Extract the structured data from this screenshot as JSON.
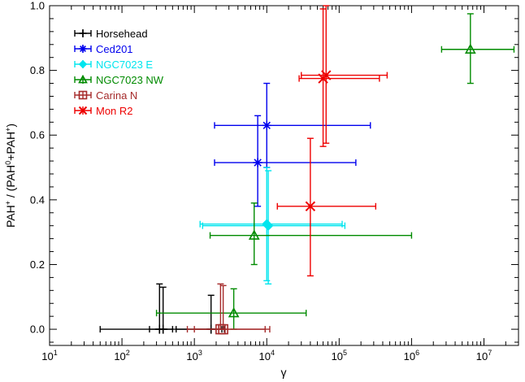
{
  "chart_data": {
    "type": "scatter",
    "xscale": "log",
    "xlim": [
      10,
      30000000
    ],
    "ylim": [
      -0.05,
      1.0
    ],
    "xlabel": "γ",
    "ylabel": "PAH⁺ / (PAH⁰+PAH⁺)",
    "xticks": [
      10,
      100,
      1000,
      10000,
      100000,
      1000000,
      10000000
    ],
    "xtick_labels": [
      {
        "base": "10",
        "exp": "1"
      },
      {
        "base": "10",
        "exp": "2"
      },
      {
        "base": "10",
        "exp": "3"
      },
      {
        "base": "10",
        "exp": "4"
      },
      {
        "base": "10",
        "exp": "5"
      },
      {
        "base": "10",
        "exp": "6"
      },
      {
        "base": "10",
        "exp": "7"
      }
    ],
    "yticks": [
      0.0,
      0.2,
      0.4,
      0.6,
      0.8,
      1.0
    ],
    "ytick_labels": [
      "0.0",
      "0.2",
      "0.4",
      "0.6",
      "0.8",
      "1.0"
    ],
    "grid": false,
    "legend_position": "top-left",
    "series": [
      {
        "name": "Horsehead",
        "color": "#000000",
        "marker": "plus",
        "points": [
          {
            "x": 330,
            "y": 0.0,
            "xlo": 50,
            "xhi": 500,
            "ylo": 0.0,
            "yhi": 0.14
          },
          {
            "x": 370,
            "y": 0.0,
            "xlo": 240,
            "xhi": 2400,
            "ylo": 0.0,
            "yhi": 0.13
          },
          {
            "x": 1700,
            "y": 0.0,
            "xlo": 560,
            "xhi": 2600,
            "ylo": 0.0,
            "yhi": 0.105
          }
        ]
      },
      {
        "name": "Ced201",
        "color": "#0000ee",
        "marker": "asterisk",
        "points": [
          {
            "x": 10000,
            "y": 0.63,
            "xlo": 1900,
            "xhi": 270000,
            "ylo": 0.5,
            "yhi": 0.76
          },
          {
            "x": 7500,
            "y": 0.515,
            "xlo": 1900,
            "xhi": 170000,
            "ylo": 0.38,
            "yhi": 0.66
          }
        ]
      },
      {
        "name": "NGC7023 E",
        "color": "#00e5ee",
        "marker": "diamond",
        "points": [
          {
            "x": 10000,
            "y": 0.325,
            "xlo": 1200,
            "xhi": 110000,
            "ylo": 0.15,
            "yhi": 0.5
          },
          {
            "x": 10500,
            "y": 0.32,
            "xlo": 1300,
            "xhi": 120000,
            "ylo": 0.14,
            "yhi": 0.49
          }
        ]
      },
      {
        "name": "NGC7023 NW",
        "color": "#008b00",
        "marker": "triangle",
        "points": [
          {
            "x": 6500000,
            "y": 0.865,
            "xlo": 2600000,
            "xhi": 26000000,
            "ylo": 0.76,
            "yhi": 0.975
          },
          {
            "x": 6700,
            "y": 0.29,
            "xlo": 1650,
            "xhi": 1000000,
            "ylo": 0.2,
            "yhi": 0.39
          },
          {
            "x": 3500,
            "y": 0.05,
            "xlo": 300,
            "xhi": 35000,
            "ylo": 0.0,
            "yhi": 0.125
          }
        ]
      },
      {
        "name": "Carina N",
        "color": "#a52a2a",
        "marker": "square",
        "points": [
          {
            "x": 2300,
            "y": 0.0,
            "xlo": 800,
            "xhi": 9500,
            "ylo": 0.0,
            "yhi": 0.14
          },
          {
            "x": 2500,
            "y": 0.0,
            "xlo": 1000,
            "xhi": 11000,
            "ylo": 0.0,
            "yhi": 0.135
          }
        ]
      },
      {
        "name": "Mon R2",
        "color": "#ee0000",
        "marker": "x",
        "points": [
          {
            "x": 60000,
            "y": 0.775,
            "xlo": 28000,
            "xhi": 360000,
            "ylo": 0.565,
            "yhi": 0.99
          },
          {
            "x": 66000,
            "y": 0.785,
            "xlo": 30000,
            "xhi": 460000,
            "ylo": 0.575,
            "yhi": 1.0
          },
          {
            "x": 40000,
            "y": 0.38,
            "xlo": 14000,
            "xhi": 320000,
            "ylo": 0.165,
            "yhi": 0.59
          }
        ]
      }
    ]
  }
}
